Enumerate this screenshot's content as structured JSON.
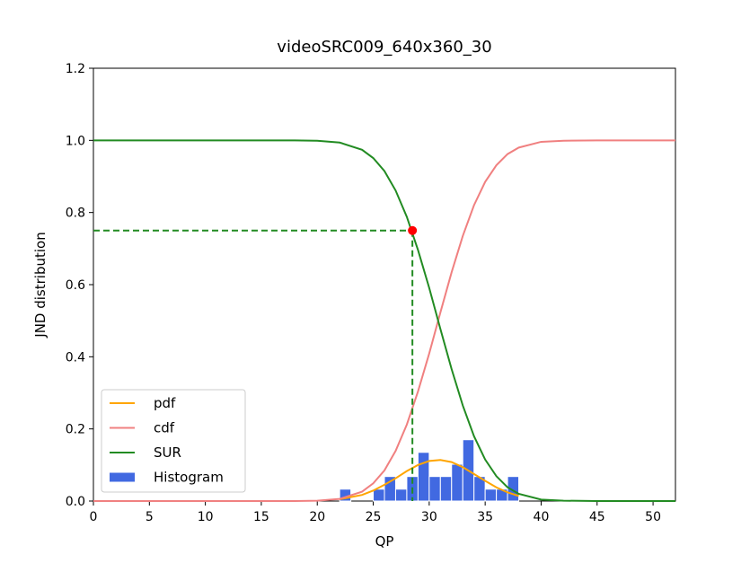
{
  "chart_data": {
    "type": "line",
    "title": "videoSRC009_640x360_30",
    "x_label": "QP",
    "y_label": "JND distribution",
    "xlim": [
      0,
      52
    ],
    "ylim": [
      0,
      1.2
    ],
    "xticks": [
      0,
      5,
      10,
      15,
      20,
      25,
      30,
      35,
      40,
      45,
      50
    ],
    "yticks": [
      {
        "value": 0,
        "label": "0.0"
      },
      0.2,
      0.4,
      0.6,
      0.8,
      {
        "value": 1,
        "label": "1.0"
      },
      1.2
    ],
    "legend": "lower left",
    "series": [
      {
        "name": "pdf",
        "color": "#ffa500",
        "x": [
          22,
          24,
          25,
          26,
          27,
          28,
          29,
          30,
          31,
          32,
          33,
          34,
          35,
          36,
          37,
          38
        ],
        "values": [
          0.005,
          0.017,
          0.029,
          0.045,
          0.063,
          0.083,
          0.1,
          0.111,
          0.114,
          0.108,
          0.094,
          0.075,
          0.056,
          0.038,
          0.024,
          0.014
        ]
      },
      {
        "name": "cdf",
        "color": "#f08080",
        "x": [
          0,
          5,
          10,
          15,
          18,
          20,
          22,
          24,
          25,
          26,
          27,
          28,
          29,
          30,
          31,
          32,
          33,
          34,
          35,
          36,
          37,
          38,
          40,
          42,
          45,
          50,
          52
        ],
        "values": [
          0,
          0,
          0,
          0,
          0.0001,
          0.001,
          0.006,
          0.026,
          0.049,
          0.085,
          0.139,
          0.212,
          0.304,
          0.409,
          0.523,
          0.634,
          0.735,
          0.82,
          0.885,
          0.931,
          0.962,
          0.98,
          0.996,
          0.999,
          1,
          1,
          1
        ]
      },
      {
        "name": "SUR",
        "color": "#228b22",
        "x": [
          0,
          5,
          10,
          15,
          18,
          20,
          22,
          24,
          25,
          26,
          27,
          28,
          29,
          30,
          31,
          32,
          33,
          34,
          35,
          36,
          37,
          38,
          40,
          42,
          45,
          50,
          52
        ],
        "values": [
          1,
          1,
          1,
          1,
          0.9999,
          0.999,
          0.994,
          0.974,
          0.951,
          0.915,
          0.861,
          0.788,
          0.696,
          0.591,
          0.477,
          0.366,
          0.265,
          0.18,
          0.115,
          0.069,
          0.038,
          0.02,
          0.004,
          0.001,
          0,
          0,
          0
        ]
      }
    ],
    "histogram": {
      "name": "Histogram",
      "color": "#4169e1",
      "bins": [
        22,
        23,
        24,
        25,
        26,
        27,
        28,
        29,
        30,
        31,
        32,
        33,
        34,
        35,
        36,
        37,
        38
      ],
      "values": [
        0.033,
        0,
        0,
        0.033,
        0.068,
        0.033,
        0.068,
        0.135,
        0.068,
        0.068,
        0.102,
        0.17,
        0.068,
        0.033,
        0.033,
        0.068
      ]
    },
    "marker": {
      "x": 28.5,
      "y": 0.75,
      "color": "#ff0000",
      "guide_color": "#228b22"
    }
  }
}
